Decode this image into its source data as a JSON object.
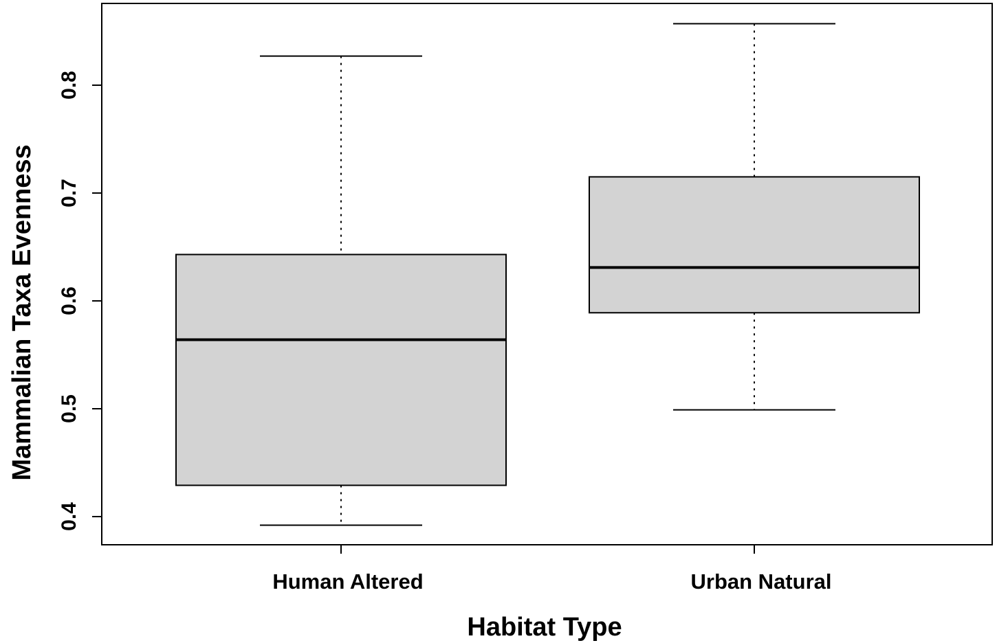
{
  "chart_data": {
    "type": "boxplot",
    "title": "",
    "xlabel": "Habitat Type",
    "ylabel": "Mammalian Taxa Evenness",
    "categories": [
      "Human Altered",
      "Urban Natural"
    ],
    "ylim": [
      0.38,
      0.86
    ],
    "yticks": [
      0.4,
      0.5,
      0.6,
      0.7,
      0.8
    ],
    "ytick_labels": [
      "0.4",
      "0.5",
      "0.6",
      "0.7",
      "0.8"
    ],
    "grid": false,
    "legend": null,
    "series": [
      {
        "name": "Human Altered",
        "whisker_low": 0.392,
        "q1": 0.429,
        "median": 0.564,
        "q3": 0.643,
        "whisker_high": 0.827
      },
      {
        "name": "Urban Natural",
        "whisker_low": 0.499,
        "q1": 0.589,
        "median": 0.631,
        "q3": 0.715,
        "whisker_high": 0.857
      }
    ],
    "colors": {
      "box_fill": "#d3d3d3",
      "box_border": "#000000",
      "axis": "#000000",
      "background": "#ffffff"
    }
  }
}
